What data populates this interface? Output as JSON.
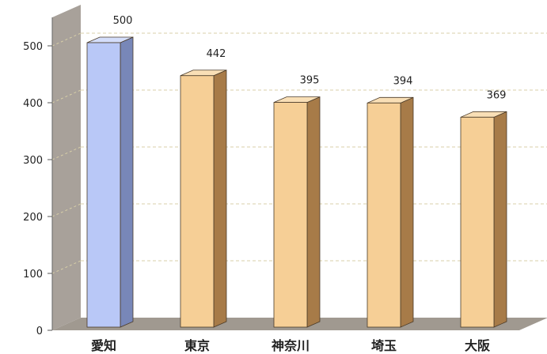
{
  "chart_data": {
    "type": "bar",
    "categories": [
      "愛知",
      "東京",
      "神奈川",
      "埼玉",
      "大阪"
    ],
    "values": [
      500,
      442,
      395,
      394,
      369
    ],
    "data_labels": [
      "500",
      "442",
      "395",
      "394",
      "369"
    ],
    "y_ticks": [
      "0",
      "100",
      "200",
      "300",
      "400",
      "500"
    ],
    "ylim": [
      0,
      550
    ],
    "title": "",
    "xlabel": "",
    "ylabel": "",
    "grid": true,
    "three_d": true,
    "colors": {
      "highlight_face": "#B9C8F7",
      "highlight_side": "#7887B8",
      "highlight_top": "#D4DEFB",
      "bar_face": "#F6CF96",
      "bar_side": "#A77B48",
      "bar_top": "#F9DFB6",
      "wall": "#A8A19A",
      "floor": "#A09990",
      "grid": "#D8CFA8"
    },
    "highlight_index": 0
  }
}
